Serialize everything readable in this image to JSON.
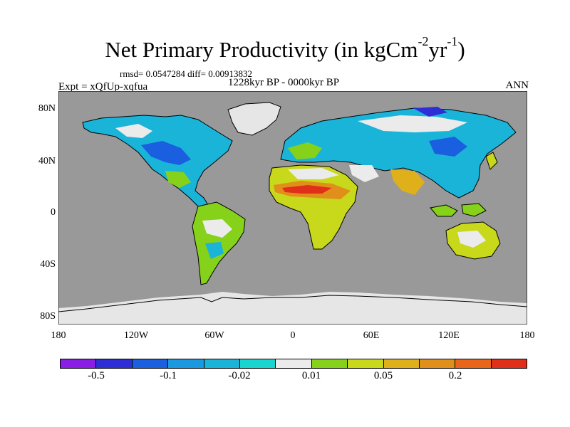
{
  "title": {
    "main": "Net Primary Productivity (in kgCm",
    "exp1": "-2",
    "mid": "yr",
    "exp2": "-1",
    "end": ")"
  },
  "stats": "rmsd= 0.0547284 diff= 0.00913832",
  "expt": "Expt = xQfUp-xqfua",
  "period": "1228kyr BP - 0000kyr BP",
  "season": "ANN",
  "y_ticks": [
    "80N",
    "40N",
    "0",
    "40S",
    "80S"
  ],
  "x_ticks": [
    "180",
    "120W",
    "60W",
    "0",
    "60E",
    "120E",
    "180"
  ],
  "colorbar": {
    "colors": [
      "#8b1ee6",
      "#2d2ed6",
      "#1a5fe0",
      "#1a98e0",
      "#1ab4d9",
      "#18d6cf",
      "#ebebeb",
      "#86d11a",
      "#c8d81a",
      "#e0b01a",
      "#e0901a",
      "#e8651a",
      "#e0301a"
    ],
    "labels": [
      "-0.5",
      "-0.1",
      "-0.02",
      "0.01",
      "0.05",
      "0.2"
    ]
  },
  "map": {
    "ocean_color": "#999999",
    "ice_color": "#e6e6e6"
  }
}
